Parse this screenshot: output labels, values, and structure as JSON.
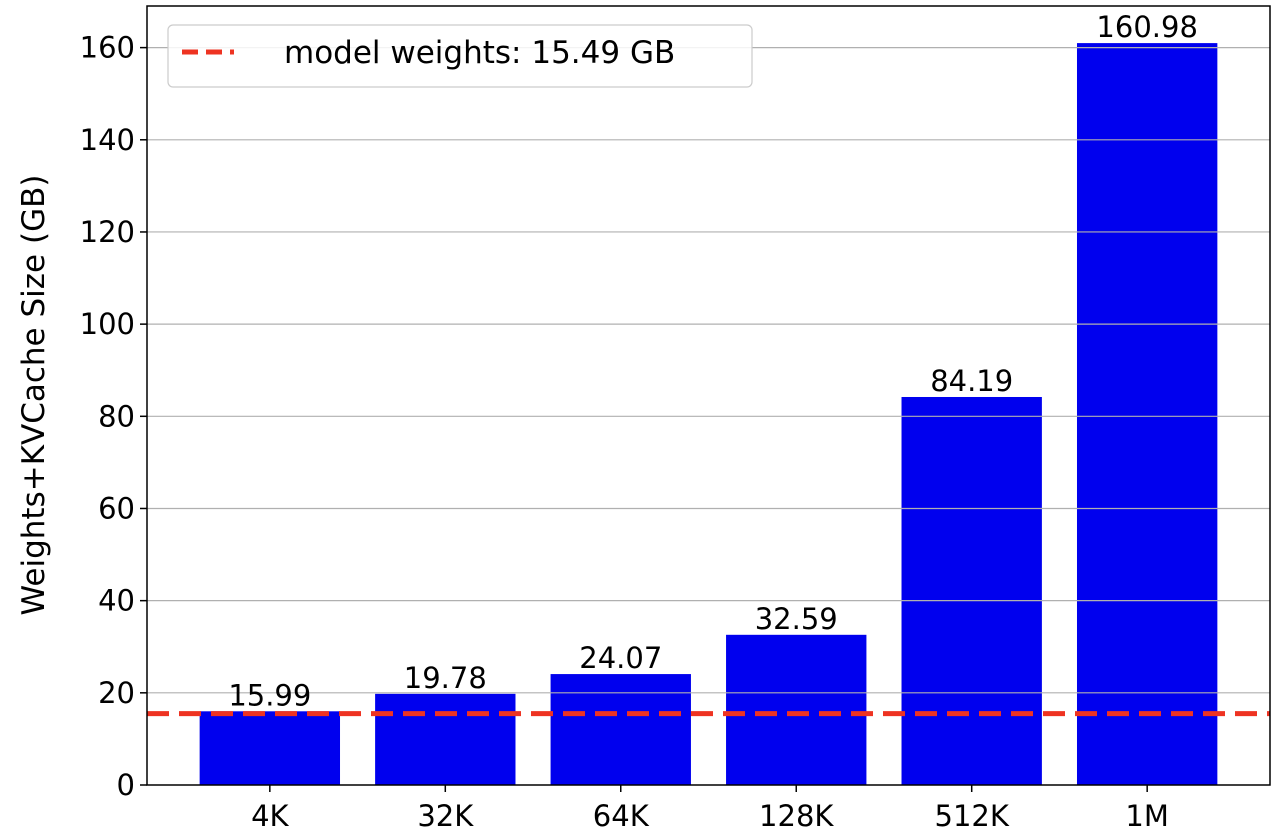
{
  "chart_data": {
    "type": "bar",
    "categories": [
      "4K",
      "32K",
      "64K",
      "128K",
      "512K",
      "1M"
    ],
    "values": [
      15.99,
      19.78,
      24.07,
      32.59,
      84.19,
      160.98
    ],
    "data_labels": [
      "15.99",
      "19.78",
      "24.07",
      "32.59",
      "84.19",
      "160.98"
    ],
    "title": "",
    "xlabel": "",
    "ylabel": "Weights+KVCache Size (GB)",
    "ylim": [
      0,
      169.03
    ],
    "yticks": [
      0,
      20,
      40,
      60,
      80,
      100,
      120,
      140,
      160
    ],
    "grid": "y",
    "bar_color": "#0000ee",
    "reference_line": {
      "value": 15.49,
      "label": "model weights: 15.49 GB",
      "color": "#ee3322",
      "style": "dashed"
    },
    "legend_placement": "top-left"
  }
}
